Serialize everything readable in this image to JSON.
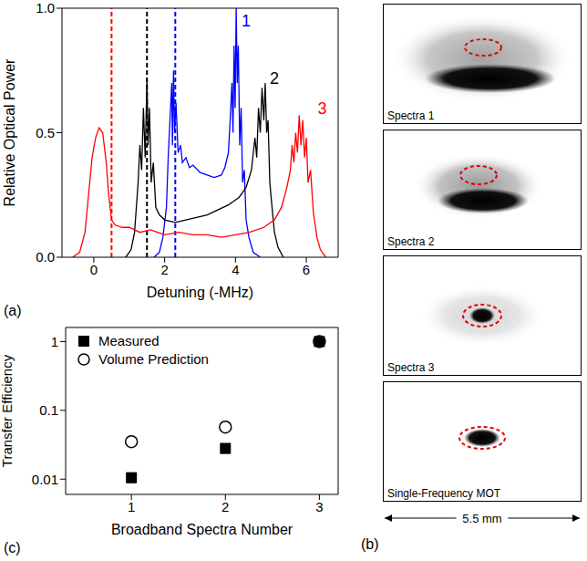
{
  "chart_data": [
    {
      "type": "line",
      "panel": "(a)",
      "x_label": "Detuning (-MHz)",
      "y_label": "Relative Optical Power",
      "xlim": [
        -0.9,
        6.9
      ],
      "xticks": [
        0,
        2,
        4,
        6
      ],
      "ylim": [
        0,
        1
      ],
      "yticks": [
        {
          "value": 0,
          "label": "0.0"
        },
        {
          "value": 0.5,
          "label": "0.5"
        },
        {
          "value": 1,
          "label": "1.0"
        }
      ],
      "reference_lines": [
        {
          "x": 0.5,
          "color": "#ff0000",
          "line_style": "dashed"
        },
        {
          "x": 1.5,
          "color": "#000000",
          "line_style": "dashed"
        },
        {
          "x": 2.3,
          "color": "#0000ff",
          "line_style": "dashed"
        }
      ],
      "series": [
        {
          "name": "1",
          "color": "#0000ff",
          "label_x": 4.3,
          "label_y": 0.95,
          "x": [
            1.7,
            1.85,
            1.95,
            2.05,
            2.1,
            2.15,
            2.2,
            2.22,
            2.25,
            2.28,
            2.32,
            2.38,
            2.45,
            2.5,
            2.6,
            2.7,
            2.8,
            3.0,
            3.2,
            3.4,
            3.6,
            3.7,
            3.8,
            3.85,
            3.9,
            3.93,
            3.96,
            3.99,
            4.02,
            4.05,
            4.08,
            4.12,
            4.16,
            4.2,
            4.25,
            4.3,
            4.38,
            4.5,
            4.7
          ],
          "values": [
            0,
            0.02,
            0.08,
            0.2,
            0.4,
            0.55,
            0.7,
            0.45,
            0.75,
            0.5,
            0.62,
            0.42,
            0.45,
            0.38,
            0.4,
            0.36,
            0.37,
            0.34,
            0.33,
            0.32,
            0.33,
            0.36,
            0.42,
            0.55,
            0.7,
            0.5,
            0.85,
            0.6,
            1.0,
            0.7,
            0.85,
            0.45,
            0.6,
            0.3,
            0.35,
            0.15,
            0.08,
            0.02,
            0
          ]
        },
        {
          "name": "2",
          "color": "#000000",
          "label_x": 5.1,
          "label_y": 0.72,
          "x": [
            0.9,
            1.05,
            1.15,
            1.25,
            1.3,
            1.35,
            1.4,
            1.45,
            1.5,
            1.53,
            1.57,
            1.62,
            1.68,
            1.75,
            1.85,
            2.0,
            2.3,
            2.6,
            2.9,
            3.2,
            3.5,
            3.8,
            4.1,
            4.3,
            4.45,
            4.55,
            4.6,
            4.65,
            4.7,
            4.75,
            4.8,
            4.84,
            4.88,
            4.92,
            4.97,
            5.02,
            5.1,
            5.2,
            5.35
          ],
          "values": [
            0,
            0.03,
            0.1,
            0.3,
            0.45,
            0.35,
            0.6,
            0.4,
            0.72,
            0.45,
            0.6,
            0.3,
            0.38,
            0.2,
            0.17,
            0.15,
            0.14,
            0.15,
            0.16,
            0.17,
            0.19,
            0.21,
            0.24,
            0.28,
            0.35,
            0.48,
            0.4,
            0.6,
            0.5,
            0.68,
            0.55,
            0.7,
            0.5,
            0.55,
            0.3,
            0.22,
            0.1,
            0.04,
            0
          ]
        },
        {
          "name": "3",
          "color": "#ff0000",
          "label_x": 6.45,
          "label_y": 0.6,
          "x": [
            -0.6,
            -0.4,
            -0.25,
            -0.15,
            -0.05,
            0.05,
            0.15,
            0.25,
            0.35,
            0.42,
            0.5,
            0.6,
            0.8,
            1.0,
            1.3,
            1.6,
            2.0,
            2.4,
            2.8,
            3.2,
            3.6,
            4.0,
            4.4,
            4.8,
            5.1,
            5.3,
            5.45,
            5.55,
            5.6,
            5.65,
            5.7,
            5.75,
            5.8,
            5.85,
            5.9,
            5.95,
            6.0,
            6.05,
            6.12,
            6.2,
            6.3,
            6.4,
            6.55
          ],
          "values": [
            0,
            0.02,
            0.1,
            0.25,
            0.4,
            0.48,
            0.52,
            0.5,
            0.38,
            0.25,
            0.15,
            0.13,
            0.12,
            0.12,
            0.1,
            0.11,
            0.09,
            0.1,
            0.09,
            0.09,
            0.08,
            0.09,
            0.1,
            0.12,
            0.15,
            0.2,
            0.28,
            0.35,
            0.45,
            0.38,
            0.5,
            0.42,
            0.57,
            0.45,
            0.55,
            0.4,
            0.48,
            0.3,
            0.35,
            0.18,
            0.08,
            0.03,
            0
          ]
        }
      ]
    },
    {
      "type": "scatter",
      "panel": "(c)",
      "x_label": "Broadband Spectra Number",
      "y_label": "Transfer Efficiency",
      "log": "y",
      "legend": "upper left",
      "xlim": [
        0.3,
        3.2
      ],
      "xticks": [
        1,
        2,
        3
      ],
      "ylim": [
        0.006,
        1.6
      ],
      "yticks": [
        0.01,
        0.1,
        1
      ],
      "series": [
        {
          "name": "Volume Prediction",
          "color": "#000000",
          "marker": "open_circle",
          "x": [
            1,
            2,
            3
          ],
          "values": [
            0.035,
            0.057,
            1.0
          ]
        },
        {
          "name": "Measured",
          "color": "#000000",
          "marker": "square",
          "x": [
            1,
            2,
            3
          ],
          "values": [
            0.0105,
            0.028,
            1.0
          ],
          "errors": [
            0.0015,
            0.004,
            0.08
          ]
        }
      ]
    }
  ],
  "panel_b": {
    "panel": "(b)",
    "images": [
      {
        "label": "Spectra 1"
      },
      {
        "label": "Spectra 2"
      },
      {
        "label": "Spectra 3"
      },
      {
        "label": "Single-Frequency MOT"
      }
    ],
    "scale_bar": "5.5 mm"
  }
}
